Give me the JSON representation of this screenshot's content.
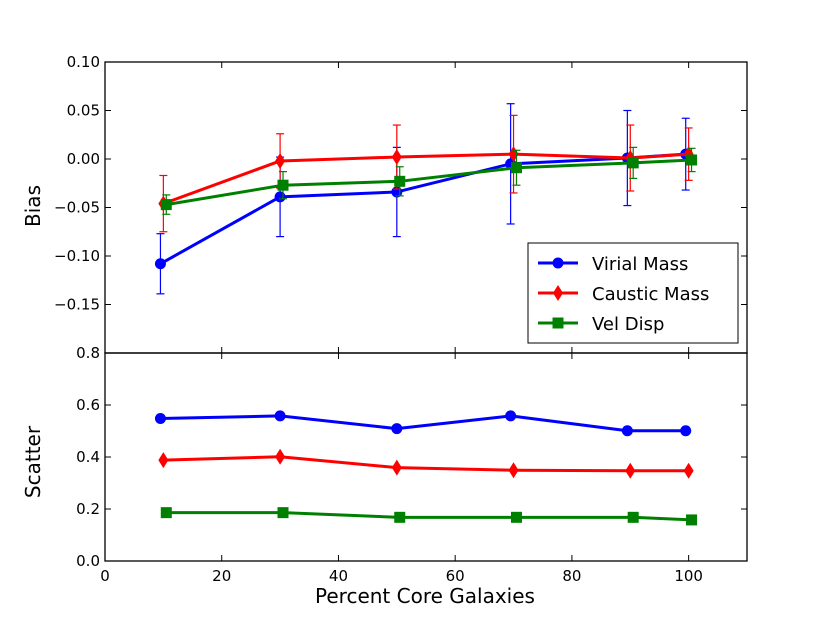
{
  "chart_data": [
    {
      "type": "line",
      "panel": "top",
      "ylabel": "Bias",
      "xlabel": "",
      "xlim": [
        0,
        110
      ],
      "ylim": [
        -0.2,
        0.1
      ],
      "yticks": [
        -0.15,
        -0.1,
        -0.05,
        0.0,
        0.05,
        0.1
      ],
      "ytick_labels": [
        "−0.15",
        "−0.10",
        "−0.05",
        "0.00",
        "0.05",
        "0.10"
      ],
      "legend_position": "lower-right",
      "series": [
        {
          "name": "Virial Mass",
          "color": "#0000ff",
          "marker": "circle",
          "x": [
            9.5,
            30,
            50,
            69.5,
            89.5,
            99.5
          ],
          "y": [
            -0.108,
            -0.039,
            -0.034,
            -0.005,
            0.001,
            0.005
          ],
          "err": [
            0.031,
            0.041,
            0.046,
            0.062,
            0.049,
            0.037
          ]
        },
        {
          "name": "Caustic Mass",
          "color": "#ff0000",
          "marker": "diamond",
          "x": [
            10,
            30,
            50,
            70,
            90,
            100
          ],
          "y": [
            -0.046,
            -0.002,
            0.002,
            0.005,
            0.001,
            0.005
          ],
          "err": [
            0.029,
            0.028,
            0.033,
            0.04,
            0.034,
            0.027
          ]
        },
        {
          "name": "Vel Disp",
          "color": "#008000",
          "marker": "square",
          "x": [
            10.5,
            30.5,
            50.5,
            70.5,
            90.5,
            100.5
          ],
          "y": [
            -0.047,
            -0.027,
            -0.023,
            -0.009,
            -0.004,
            -0.001
          ],
          "err": [
            0.01,
            0.014,
            0.015,
            0.018,
            0.016,
            0.012
          ]
        }
      ]
    },
    {
      "type": "line",
      "panel": "bottom",
      "ylabel": "Scatter",
      "xlabel": "Percent Core Galaxies",
      "xlim": [
        0,
        110
      ],
      "ylim": [
        0,
        0.8
      ],
      "xticks": [
        0,
        20,
        40,
        60,
        80,
        100
      ],
      "xtick_labels": [
        "0",
        "20",
        "40",
        "60",
        "80",
        "100"
      ],
      "yticks": [
        0.0,
        0.2,
        0.4,
        0.6,
        0.8
      ],
      "ytick_labels": [
        "0.0",
        "0.2",
        "0.4",
        "0.6",
        "0.8"
      ],
      "series": [
        {
          "name": "Virial Mass",
          "color": "#0000ff",
          "marker": "circle",
          "x": [
            9.5,
            30,
            50,
            69.5,
            89.5,
            99.5
          ],
          "y": [
            0.548,
            0.558,
            0.509,
            0.558,
            0.501,
            0.501
          ]
        },
        {
          "name": "Caustic Mass",
          "color": "#ff0000",
          "marker": "diamond",
          "x": [
            10,
            30,
            50,
            70,
            90,
            100
          ],
          "y": [
            0.388,
            0.401,
            0.359,
            0.349,
            0.347,
            0.347
          ]
        },
        {
          "name": "Vel Disp",
          "color": "#008000",
          "marker": "square",
          "x": [
            10.5,
            30.5,
            50.5,
            70.5,
            90.5,
            100.5
          ],
          "y": [
            0.186,
            0.186,
            0.168,
            0.168,
            0.168,
            0.158
          ]
        }
      ]
    }
  ]
}
